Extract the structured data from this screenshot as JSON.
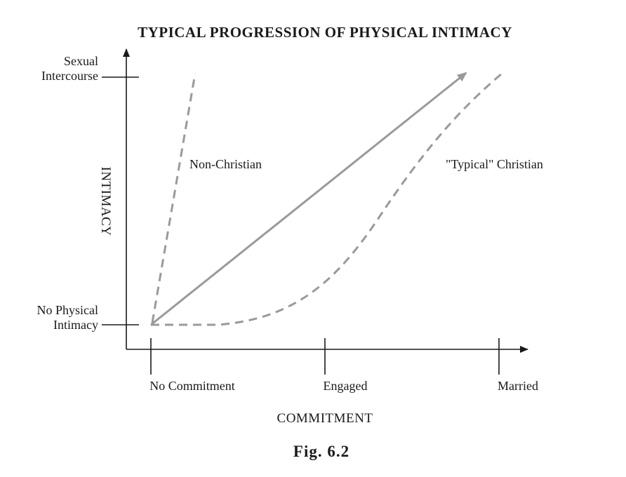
{
  "title": "TYPICAL PROGRESSION OF PHYSICAL INTIMACY",
  "y_axis": {
    "label": "INTIMACY",
    "levels": [
      {
        "line1": "Sexual",
        "line2": "Intercourse"
      },
      {
        "line1": "No Physical",
        "line2": "Intimacy"
      }
    ]
  },
  "x_axis": {
    "label": "COMMITMENT",
    "stages": [
      "No Commitment",
      "Engaged",
      "Married"
    ]
  },
  "series": {
    "non_christian": "Non-Christian",
    "typical_christian": "\"Typical\" Christian"
  },
  "caption": "Fig. 6.2",
  "colors": {
    "ink": "#1a1a1a",
    "curve": "#9a9a9a"
  }
}
